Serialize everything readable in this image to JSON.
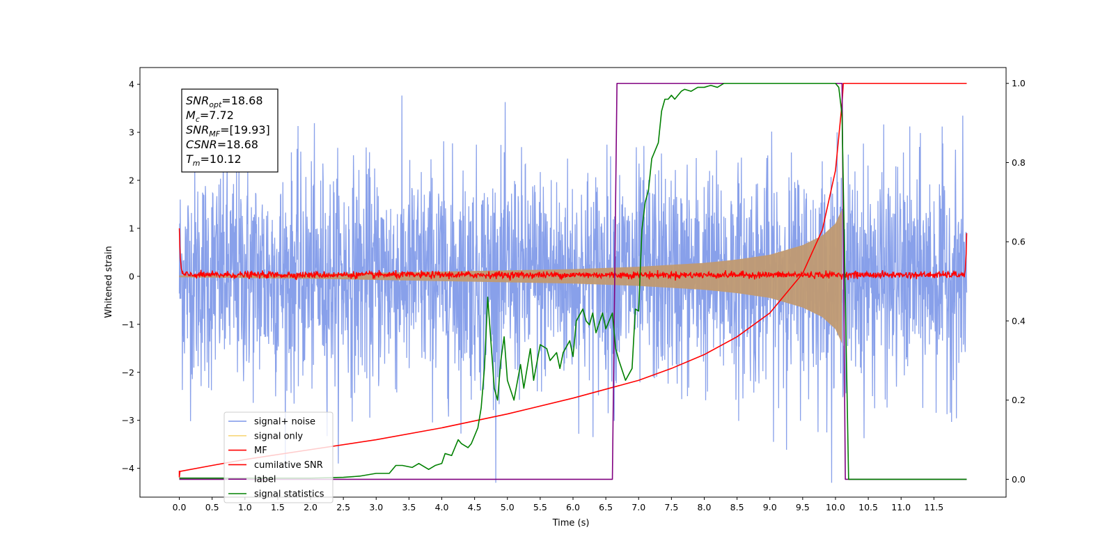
{
  "chart_data": {
    "type": "line",
    "xlabel": "Time (s)",
    "ylabel": "Whitened strain",
    "xlim": [
      -0.6,
      12.6
    ],
    "ylim": [
      -4.6,
      4.35
    ],
    "y2lim": [
      -0.045,
      1.04
    ],
    "xticks": [
      0.0,
      0.5,
      1.0,
      1.5,
      2.0,
      2.5,
      3.0,
      3.5,
      4.0,
      4.5,
      5.0,
      5.5,
      6.0,
      6.5,
      7.0,
      7.5,
      8.0,
      8.5,
      9.0,
      9.5,
      10.0,
      10.5,
      11.0,
      11.5
    ],
    "xtick_labels": [
      "0.0",
      "0.5",
      "1.0",
      "1.5",
      "2.0",
      "2.5",
      "3.0",
      "3.5",
      "4.0",
      "4.5",
      "5.0",
      "5.5",
      "6.0",
      "6.5",
      "7.0",
      "7.5",
      "8.0",
      "8.5",
      "9.0",
      "9.5",
      "10.0",
      "10.5",
      "11.0",
      "11.5"
    ],
    "yticks": [
      -4,
      -3,
      -2,
      -1,
      0,
      1,
      2,
      3,
      4
    ],
    "ytick_labels": [
      "−4",
      "−3",
      "−2",
      "−1",
      "0",
      "1",
      "2",
      "3",
      "4"
    ],
    "y2ticks": [
      0.0,
      0.2,
      0.4,
      0.6,
      0.8,
      1.0
    ],
    "y2tick_labels": [
      "0.0",
      "0.2",
      "0.4",
      "0.6",
      "0.8",
      "1.0"
    ],
    "legend_position": "lower-left",
    "grid": false,
    "stats_box": [
      {
        "sym": "SNR",
        "sub": "opt",
        "val": "=18.68"
      },
      {
        "sym": "M",
        "sub": "c",
        "val": "=7.72"
      },
      {
        "sym": "SNR",
        "sub": "MF",
        "val": "=[19.93]"
      },
      {
        "sym": "CSNR",
        "sub": "",
        "val": "=18.68"
      },
      {
        "sym": "T",
        "sub": "m",
        "val": "=10.12"
      }
    ],
    "series": [
      {
        "name": "signal+ noise",
        "color": "#7b96e8",
        "axis": "left",
        "kind": "noise-band",
        "x_range": [
          0.0,
          12.0
        ],
        "envelope_sigma": 1.0
      },
      {
        "name": "signal only",
        "color": "#f5c542",
        "axis": "left",
        "kind": "chirp-envelope",
        "envelope": {
          "x": [
            0.0,
            2.0,
            4.0,
            6.0,
            7.0,
            8.0,
            8.5,
            9.0,
            9.5,
            9.8,
            10.0,
            10.1
          ],
          "amp": [
            0.02,
            0.05,
            0.1,
            0.15,
            0.2,
            0.28,
            0.35,
            0.45,
            0.65,
            0.85,
            1.1,
            1.4
          ]
        }
      },
      {
        "name": "MF",
        "color": "#ff0000",
        "axis": "left",
        "kind": "noisy-flat",
        "x_range": [
          0.0,
          12.0
        ],
        "edge_values": [
          1.0,
          0.9
        ]
      },
      {
        "name": "cumilative SNR",
        "color": "#ff0000",
        "axis": "right",
        "x": [
          0.0,
          0.01,
          0.5,
          1.0,
          2.0,
          3.0,
          4.0,
          5.0,
          6.0,
          7.0,
          7.5,
          8.0,
          8.5,
          9.0,
          9.5,
          9.8,
          10.0,
          10.1,
          10.12,
          12.0
        ],
        "values": [
          0.005,
          0.02,
          0.035,
          0.05,
          0.075,
          0.1,
          0.13,
          0.165,
          0.205,
          0.25,
          0.28,
          0.315,
          0.36,
          0.42,
          0.52,
          0.63,
          0.78,
          0.95,
          1.0,
          1.0
        ]
      },
      {
        "name": "label",
        "color": "#800080",
        "axis": "right",
        "x": [
          0.0,
          6.6,
          6.67,
          10.1,
          10.15,
          12.0
        ],
        "values": [
          0.0,
          0.0,
          1.0,
          1.0,
          0.0,
          0.0
        ]
      },
      {
        "name": "signal statistics",
        "color": "#008000",
        "axis": "right",
        "x": [
          0.0,
          0.5,
          1.0,
          1.5,
          2.0,
          2.5,
          2.75,
          3.0,
          3.2,
          3.3,
          3.4,
          3.55,
          3.65,
          3.8,
          3.9,
          4.0,
          4.05,
          4.15,
          4.25,
          4.3,
          4.4,
          4.45,
          4.55,
          4.6,
          4.65,
          4.7,
          4.8,
          4.85,
          4.9,
          4.95,
          5.0,
          5.1,
          5.2,
          5.25,
          5.35,
          5.4,
          5.5,
          5.6,
          5.65,
          5.75,
          5.8,
          5.85,
          5.95,
          6.0,
          6.05,
          6.15,
          6.2,
          6.25,
          6.3,
          6.35,
          6.45,
          6.5,
          6.55,
          6.6,
          6.65,
          6.7,
          6.8,
          6.9,
          6.95,
          7.0,
          7.05,
          7.1,
          7.15,
          7.2,
          7.3,
          7.35,
          7.4,
          7.45,
          7.5,
          7.55,
          7.65,
          7.7,
          7.8,
          7.9,
          8.0,
          8.1,
          8.2,
          8.3,
          8.5,
          9.0,
          9.5,
          10.0,
          10.05,
          10.1,
          10.2,
          10.3,
          12.0
        ],
        "values": [
          0.003,
          0.003,
          0.003,
          0.003,
          0.003,
          0.005,
          0.008,
          0.015,
          0.015,
          0.035,
          0.035,
          0.03,
          0.04,
          0.025,
          0.035,
          0.04,
          0.065,
          0.06,
          0.1,
          0.09,
          0.08,
          0.09,
          0.13,
          0.18,
          0.28,
          0.46,
          0.23,
          0.2,
          0.3,
          0.36,
          0.25,
          0.2,
          0.29,
          0.23,
          0.33,
          0.25,
          0.34,
          0.33,
          0.3,
          0.32,
          0.28,
          0.32,
          0.35,
          0.31,
          0.4,
          0.43,
          0.4,
          0.39,
          0.42,
          0.37,
          0.42,
          0.38,
          0.4,
          0.42,
          0.33,
          0.3,
          0.25,
          0.28,
          0.43,
          0.425,
          0.63,
          0.7,
          0.73,
          0.81,
          0.85,
          0.93,
          0.96,
          0.96,
          0.97,
          0.96,
          0.98,
          0.985,
          0.98,
          0.99,
          0.99,
          0.995,
          0.99,
          1.0,
          1.0,
          1.0,
          1.0,
          1.0,
          0.99,
          0.92,
          0.0,
          0.0,
          0.0
        ]
      }
    ]
  }
}
